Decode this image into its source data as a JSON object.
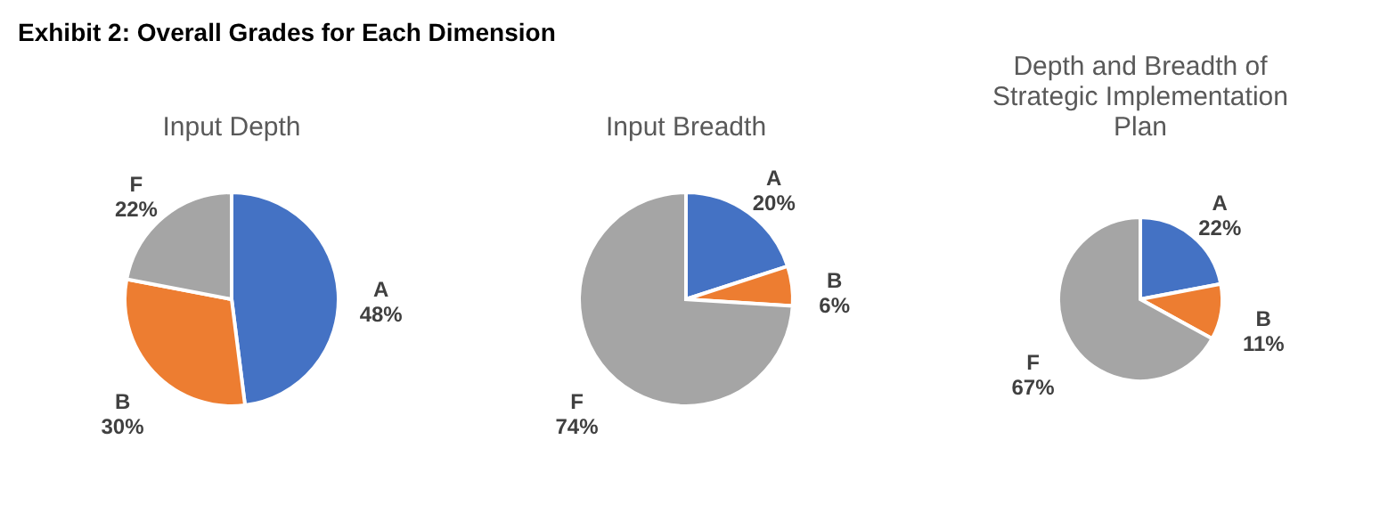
{
  "chart_data": [
    {
      "type": "pie",
      "title": "Input Depth",
      "annotations": [
        "Exhibit 2: Overall Grades for Each Dimension"
      ],
      "categories": [
        "A",
        "B",
        "F"
      ],
      "values": [
        48,
        30,
        22
      ],
      "value_labels": [
        "48%",
        "30%",
        "22%"
      ],
      "colors": [
        "#4472c4",
        "#ed7d31",
        "#a5a5a5"
      ],
      "legend": false
    },
    {
      "type": "pie",
      "title": "Input Breadth",
      "categories": [
        "A",
        "B",
        "F"
      ],
      "values": [
        20,
        6,
        74
      ],
      "value_labels": [
        "20%",
        "6%",
        "74%"
      ],
      "colors": [
        "#4472c4",
        "#ed7d31",
        "#a5a5a5"
      ],
      "legend": false
    },
    {
      "type": "pie",
      "title": "Depth and Breadth of Strategic Implementation Plan",
      "categories": [
        "A",
        "B",
        "F"
      ],
      "values": [
        22,
        11,
        67
      ],
      "value_labels": [
        "22%",
        "11%",
        "67%"
      ],
      "colors": [
        "#4472c4",
        "#ed7d31",
        "#a5a5a5"
      ],
      "legend": false
    }
  ]
}
